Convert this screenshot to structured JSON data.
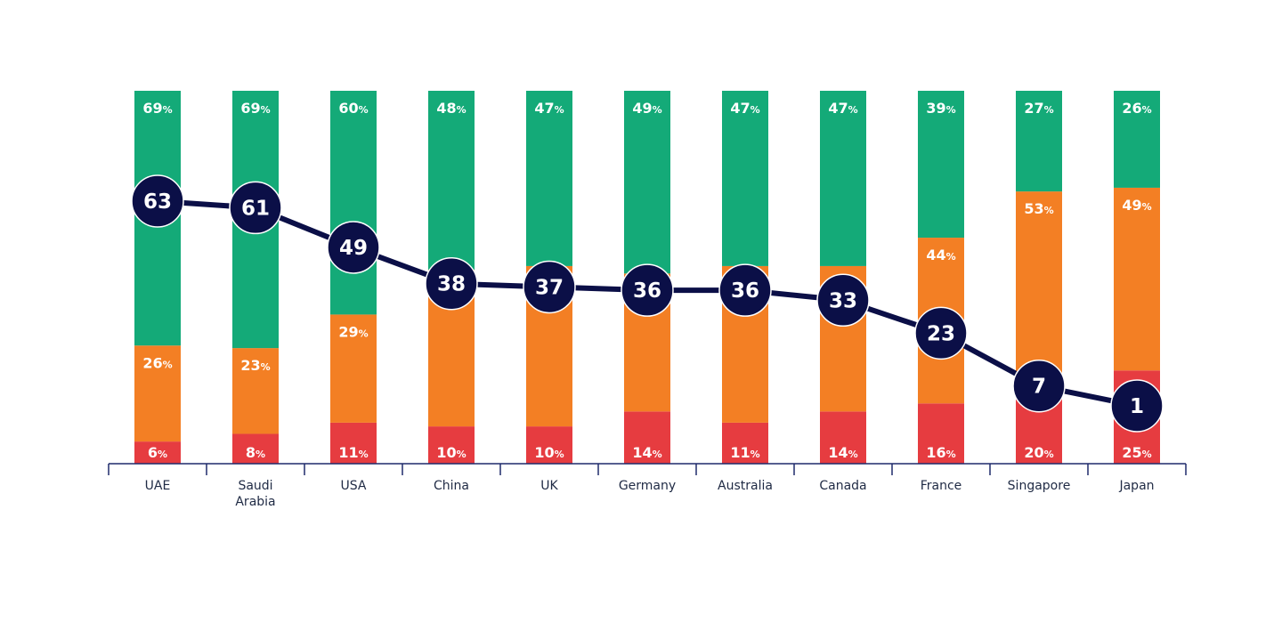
{
  "chart_data": {
    "type": "bar",
    "stacked": true,
    "stack_percent": true,
    "categories": [
      "UAE",
      "Saudi Arabia",
      "USA",
      "China",
      "UK",
      "Germany",
      "Australia",
      "Canada",
      "France",
      "Singapore",
      "Japan"
    ],
    "category_lines": [
      [
        "UAE"
      ],
      [
        "Saudi",
        "Arabia"
      ],
      [
        "USA"
      ],
      [
        "China"
      ],
      [
        "UK"
      ],
      [
        "Germany"
      ],
      [
        "Australia"
      ],
      [
        "Canada"
      ],
      [
        "France"
      ],
      [
        "Singapore"
      ],
      [
        "Japan"
      ]
    ],
    "value_suffix": "%",
    "series": [
      {
        "values": [
          6,
          8,
          11,
          10,
          10,
          14,
          11,
          14,
          16,
          20,
          25
        ],
        "color": "#e63c40"
      },
      {
        "values": [
          26,
          23,
          29,
          42,
          43,
          37,
          42,
          39,
          44,
          53,
          49
        ],
        "color": "#f37f24"
      },
      {
        "values": [
          69,
          69,
          60,
          48,
          47,
          49,
          47,
          47,
          39,
          27,
          26
        ],
        "color": "#14aa78"
      }
    ],
    "line_series": {
      "type": "line",
      "values": [
        63,
        61,
        49,
        38,
        37,
        36,
        36,
        33,
        23,
        7,
        1
      ],
      "color": "#0b0f47",
      "ylim": [
        0,
        100
      ]
    },
    "ylim": [
      0,
      100
    ],
    "axis_color": "#1f2a6b",
    "grid": false,
    "legend": "none",
    "title": "",
    "xlabel": "",
    "ylabel": ""
  }
}
